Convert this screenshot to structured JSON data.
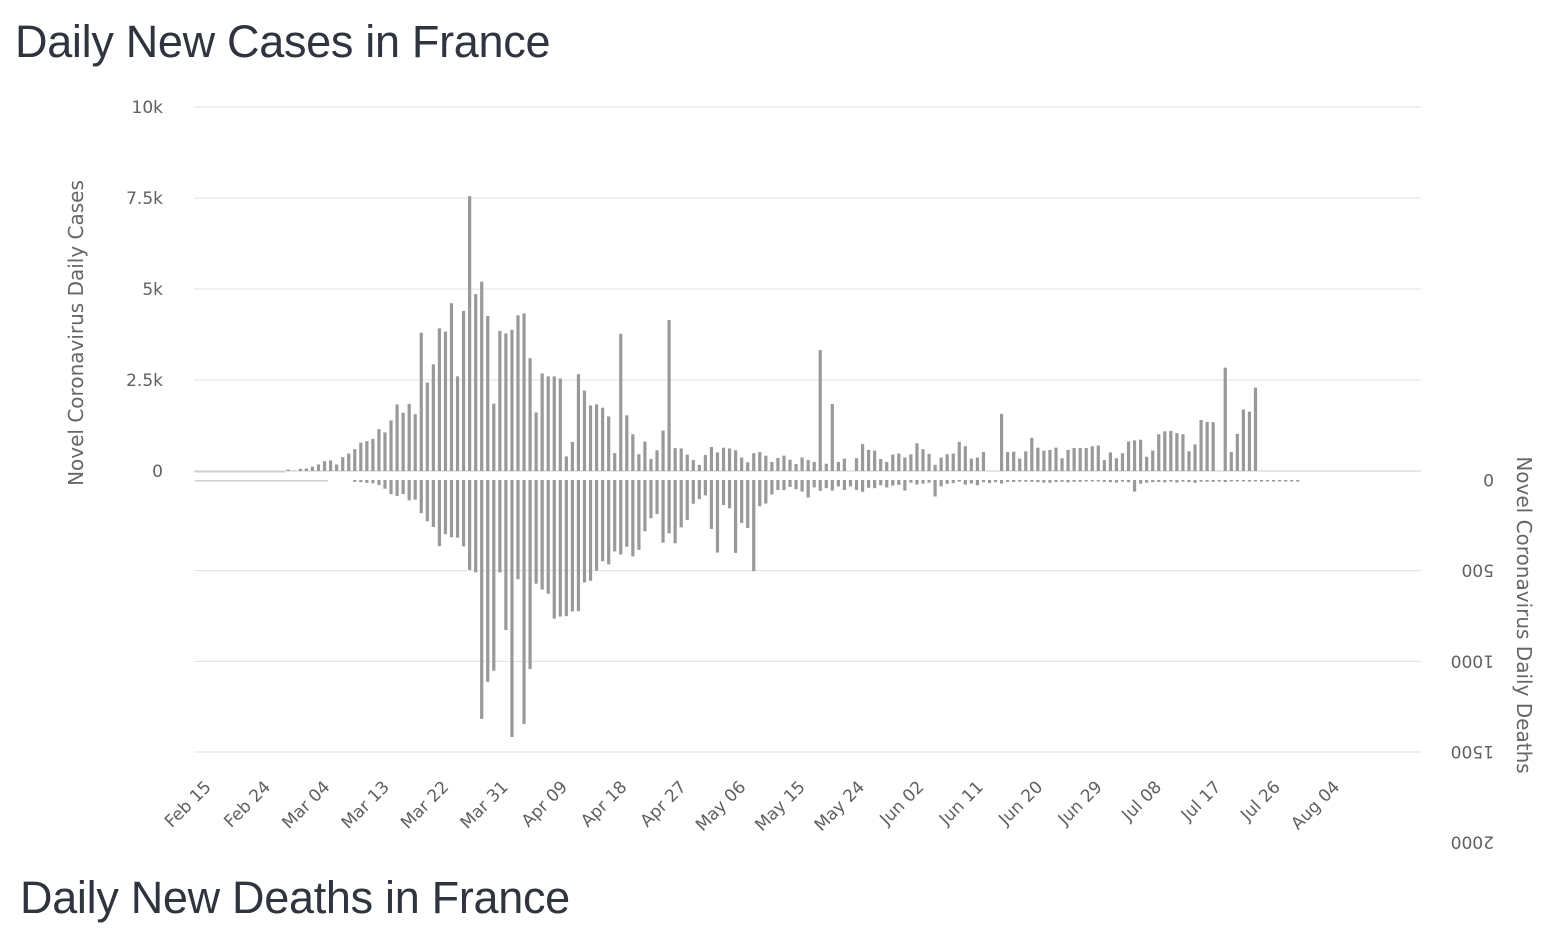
{
  "page": {
    "title_top": "Daily New Cases in France",
    "title_bottom": "Daily New Deaths in France"
  },
  "chart_data": {
    "type": "bar",
    "bar_color": "#999999",
    "grid_color": "#e0e0e0",
    "x_tick_labels": [
      "Feb 15",
      "Feb 24",
      "Mar 04",
      "Mar 13",
      "Mar 22",
      "Mar 31",
      "Apr 09",
      "Apr 18",
      "Apr 27",
      "May 06",
      "May 15",
      "May 24",
      "Jun 02",
      "Jun 11",
      "Jun 20",
      "Jun 29",
      "Jul 08",
      "Jul 17",
      "Jul 26",
      "Aug 04"
    ],
    "start_date": "Feb 15",
    "cases_axis": {
      "title": "Novel Coronavirus Daily Cases",
      "ylim": [
        0,
        10000
      ],
      "ticks": [
        0,
        2500,
        5000,
        7500,
        10000
      ],
      "tick_labels": [
        "0",
        "2.5k",
        "5k",
        "7.5k",
        "10k"
      ]
    },
    "deaths_axis": {
      "title": "Novel Coronavirus Daily Deaths",
      "ylim": [
        0,
        2000
      ],
      "ticks": [
        0,
        500,
        1000,
        1500,
        2000
      ],
      "tick_labels": [
        "0",
        "500",
        "1000",
        "1500",
        "2000"
      ],
      "reversed": true
    },
    "series": [
      {
        "name": "Daily New Cases",
        "values": [
          0,
          0,
          0,
          0,
          0,
          0,
          0,
          0,
          0,
          0,
          0,
          0,
          0,
          0,
          0,
          40,
          10,
          60,
          70,
          120,
          180,
          270,
          290,
          180,
          380,
          480,
          600,
          780,
          820,
          880,
          1150,
          1060,
          1390,
          1830,
          1600,
          1840,
          1560,
          3800,
          2430,
          2930,
          3920,
          3830,
          4610,
          2600,
          4400,
          7550,
          4860,
          5200,
          4260,
          1850,
          3850,
          3780,
          3880,
          4280,
          4330,
          3100,
          1610,
          2680,
          2600,
          2600,
          2540,
          400,
          800,
          2660,
          2210,
          1800,
          1830,
          1740,
          1500,
          490,
          3770,
          1530,
          1010,
          460,
          810,
          330,
          570,
          1110,
          4150,
          630,
          620,
          450,
          300,
          170,
          440,
          660,
          510,
          640,
          620,
          570,
          370,
          240,
          490,
          520,
          420,
          250,
          360,
          420,
          310,
          190,
          370,
          300,
          250,
          3320,
          200,
          1840,
          250,
          340,
          0,
          350,
          740,
          580,
          560,
          330,
          250,
          450,
          480,
          370,
          460,
          760,
          600,
          470,
          170,
          370,
          460,
          480,
          800,
          680,
          340,
          370,
          520,
          0,
          0,
          1570,
          520,
          530,
          340,
          540,
          910,
          640,
          560,
          580,
          640,
          350,
          580,
          630,
          630,
          630,
          680,
          700,
          300,
          510,
          350,
          490,
          810,
          840,
          860,
          390,
          560,
          1010,
          1090,
          1100,
          1040,
          1010,
          540,
          730,
          1400,
          1350,
          1340,
          0,
          2840,
          520,
          1020,
          1690,
          1630,
          2290
        ],
        "axis": "cases"
      },
      {
        "name": "Daily New Deaths",
        "values": [
          0,
          0,
          0,
          0,
          0,
          0,
          0,
          0,
          0,
          0,
          0,
          0,
          0,
          0,
          0,
          0,
          0,
          0,
          0,
          0,
          0,
          0,
          0,
          0,
          0,
          0,
          10,
          12,
          16,
          18,
          28,
          48,
          78,
          88,
          77,
          112,
          108,
          183,
          228,
          259,
          365,
          299,
          316,
          318,
          366,
          496,
          509,
          1318,
          1113,
          1052,
          510,
          828,
          1417,
          547,
          1345,
          1043,
          572,
          604,
          627,
          764,
          753,
          751,
          725,
          723,
          565,
          556,
          500,
          448,
          465,
          394,
          411,
          368,
          421,
          385,
          283,
          211,
          187,
          346,
          294,
          349,
          261,
          220,
          131,
          105,
          85,
          270,
          400,
          138,
          156,
          402,
          237,
          265,
          503,
          145,
          130,
          80,
          55,
          55,
          38,
          51,
          64,
          97,
          41,
          60,
          45,
          58,
          35,
          55,
          35,
          55,
          65,
          43,
          45,
          29,
          41,
          31,
          27,
          58,
          15,
          25,
          20,
          15,
          91,
          35,
          21,
          17,
          9,
          25,
          19,
          29,
          12,
          17,
          12,
          20,
          11,
          11,
          9,
          9,
          10,
          12,
          14,
          15,
          11,
          10,
          13,
          10,
          10,
          7,
          7,
          6,
          10,
          12,
          14,
          9,
          12,
          64,
          20,
          15,
          12,
          11,
          13,
          9,
          14,
          9,
          12,
          15,
          9,
          10,
          10,
          7,
          11,
          8,
          6,
          7,
          9,
          8,
          5,
          4,
          4,
          4,
          3,
          3,
          3
        ],
        "axis": "deaths"
      }
    ]
  }
}
